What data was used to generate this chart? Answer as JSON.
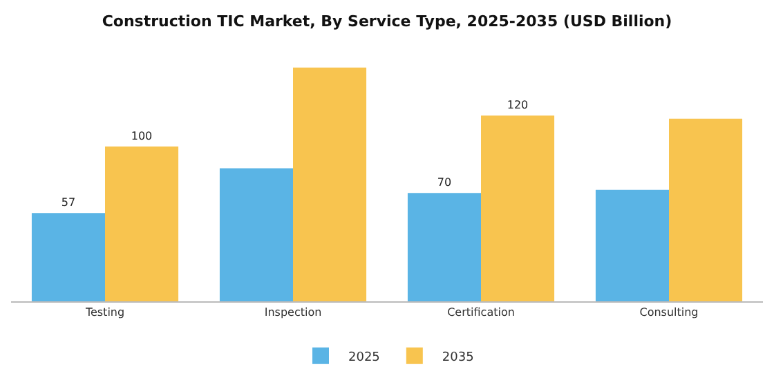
{
  "chart_data": {
    "type": "bar",
    "title": "Construction TIC Market, By Service Type, 2025-2035 (USD Billion)",
    "categories": [
      "Testing",
      "Inspection",
      "Certification",
      "Consulting"
    ],
    "series": [
      {
        "name": "2025",
        "color": "#5ab4e5",
        "values": [
          57,
          86,
          70,
          72
        ],
        "value_labels": [
          "57",
          null,
          "70",
          null
        ]
      },
      {
        "name": "2035",
        "color": "#f8c44f",
        "values": [
          100,
          151,
          120,
          118
        ],
        "value_labels": [
          "100",
          null,
          "120",
          null
        ]
      }
    ],
    "grid": false,
    "legend": "bottom",
    "tick_labels": "x"
  }
}
